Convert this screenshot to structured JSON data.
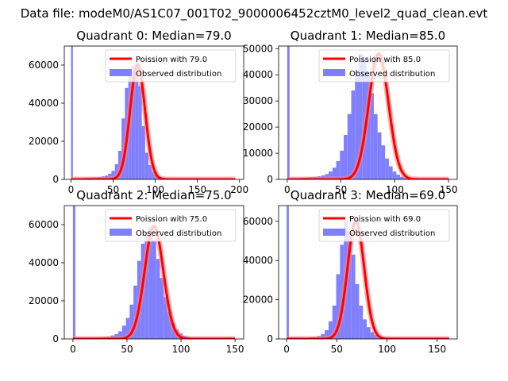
{
  "suptitle": "Data file: modeM0/AS1C07_001T02_9000006452cztM0_level2_quad_clean.evt",
  "colors": {
    "observed": "#8080ff",
    "poisson": "#ff0000",
    "poisson_alpha_band": "#ff8080"
  },
  "chart_data": [
    {
      "type": "bar",
      "title": "Quadrant 0: Median=79.0",
      "xlim": [
        -8,
        205
      ],
      "ylim": [
        0,
        70000
      ],
      "xticks": [
        0,
        50,
        100,
        150,
        200
      ],
      "yticks": [
        0,
        20000,
        40000,
        60000
      ],
      "legend": {
        "placement": "top-right",
        "line_label": "Poission with 79.0",
        "bar_label": "Observed distribution"
      },
      "median": 79.0,
      "fit_x_range": [
        0,
        195
      ],
      "spike": {
        "x": 1,
        "value": 70000
      },
      "bins": {
        "start": 0,
        "width": 4,
        "values": [
          500,
          500,
          600,
          700,
          800,
          900,
          1000,
          1100,
          1300,
          1600,
          2000,
          3000,
          4500,
          8000,
          15000,
          32000,
          48000,
          54000,
          60000,
          59000,
          49000,
          28000,
          14000,
          7500,
          4000,
          2000,
          1200,
          800,
          500,
          400,
          300,
          200,
          150,
          100,
          80,
          60,
          40,
          30,
          20,
          10,
          10,
          5,
          5,
          5,
          5,
          5,
          5,
          5,
          5
        ]
      }
    },
    {
      "type": "bar",
      "title": "Quadrant 1: Median=85.0",
      "xlim": [
        -8,
        158
      ],
      "ylim": [
        0,
        51000
      ],
      "xticks": [
        0,
        50,
        100,
        150
      ],
      "yticks": [
        0,
        10000,
        20000,
        30000,
        40000,
        50000
      ],
      "legend": {
        "placement": "top-right",
        "line_label": "Poission with 85.0",
        "bar_label": "Observed distribution"
      },
      "median": 85.0,
      "fit_x_range": [
        0,
        150
      ],
      "spike": {
        "x": 1,
        "value": 51000
      },
      "bins": {
        "start": 0,
        "width": 3.5,
        "values": [
          400,
          400,
          500,
          600,
          700,
          800,
          900,
          1000,
          1200,
          1500,
          2000,
          3000,
          4500,
          7000,
          11000,
          17000,
          25000,
          34000,
          42000,
          48000,
          46000,
          41000,
          33000,
          25000,
          18000,
          13000,
          8000,
          5000,
          3000,
          1800,
          1000,
          600,
          400,
          250,
          150,
          100,
          60,
          40,
          20,
          10,
          10,
          5,
          5
        ]
      }
    },
    {
      "type": "bar",
      "title": "Quadrant 2: Median=75.0",
      "xlim": [
        -8,
        158
      ],
      "ylim": [
        0,
        70000
      ],
      "xticks": [
        0,
        50,
        100,
        150
      ],
      "yticks": [
        0,
        20000,
        40000,
        60000
      ],
      "legend": {
        "placement": "top-right",
        "line_label": "Poission with 75.0",
        "bar_label": "Observed distribution"
      },
      "median": 75.0,
      "fit_x_range": [
        0,
        150
      ],
      "spike": {
        "x": 1,
        "value": 70000
      },
      "bins": {
        "start": 0,
        "width": 3.5,
        "values": [
          300,
          300,
          300,
          400,
          500,
          600,
          700,
          800,
          1000,
          1300,
          1800,
          2500,
          4000,
          7000,
          11000,
          18000,
          28000,
          41000,
          50000,
          56000,
          59000,
          52000,
          42000,
          32000,
          22000,
          14000,
          8500,
          5000,
          3000,
          1700,
          1000,
          600,
          350,
          200,
          120,
          70,
          40,
          20,
          10,
          5,
          5,
          5,
          5
        ]
      }
    },
    {
      "type": "bar",
      "title": "Quadrant 3: Median=69.0",
      "xlim": [
        -8,
        170
      ],
      "ylim": [
        0,
        68000
      ],
      "xticks": [
        0,
        50,
        100,
        150
      ],
      "yticks": [
        0,
        20000,
        40000,
        60000
      ],
      "legend": {
        "placement": "top-right",
        "line_label": "Poission with 69.0",
        "bar_label": "Observed distribution"
      },
      "median": 69.0,
      "fit_x_range": [
        0,
        162
      ],
      "spike": {
        "x": 1,
        "value": 68000
      },
      "bins": {
        "start": 0,
        "width": 3.8,
        "values": [
          300,
          300,
          300,
          400,
          500,
          600,
          800,
          1000,
          1500,
          2500,
          4500,
          9000,
          17000,
          33000,
          48000,
          60000,
          55000,
          43000,
          28000,
          17000,
          10000,
          6000,
          3500,
          2000,
          1200,
          700,
          400,
          250,
          150,
          100,
          60,
          40,
          20,
          10,
          5,
          5,
          5,
          5,
          5,
          5,
          5,
          5,
          5
        ]
      }
    }
  ]
}
